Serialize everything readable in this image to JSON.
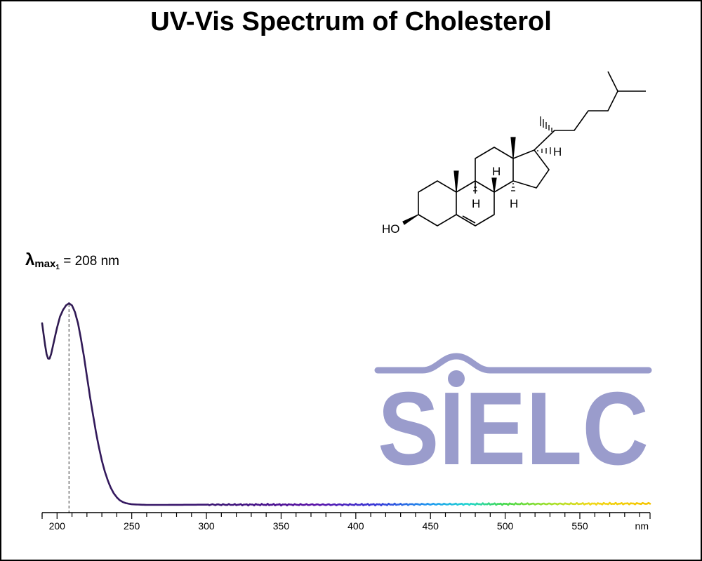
{
  "chart_data": {
    "type": "line",
    "title": "UV-Vis Spectrum of Cholesterol",
    "xlabel": "nm",
    "ylabel": "",
    "xlim": [
      190,
      597
    ],
    "ylim": [
      0,
      1.0
    ],
    "x_ticks_major": [
      200,
      250,
      300,
      350,
      400,
      450,
      500,
      550
    ],
    "x_ticks_minor_step": 10,
    "grid": false,
    "annotations": [
      {
        "kind": "lambda_max",
        "symbol": "λ",
        "sub": "max",
        "index": "1",
        "value_text": "= 208 nm",
        "x": 208
      }
    ],
    "series": [
      {
        "x": [
          190,
          192,
          193,
          194,
          195,
          196,
          198,
          200,
          202,
          204,
          206,
          208,
          210,
          212,
          214,
          216,
          218,
          220,
          222,
          224,
          226,
          228,
          230,
          232,
          234,
          236,
          238,
          240,
          242,
          244,
          246,
          248,
          250,
          253,
          256,
          260,
          270,
          300,
          350,
          400,
          450,
          500,
          550,
          597
        ],
        "values": [
          0.82,
          0.72,
          0.68,
          0.66,
          0.66,
          0.68,
          0.74,
          0.8,
          0.85,
          0.88,
          0.9,
          0.91,
          0.9,
          0.87,
          0.82,
          0.75,
          0.67,
          0.58,
          0.49,
          0.41,
          0.33,
          0.26,
          0.2,
          0.15,
          0.11,
          0.077,
          0.052,
          0.034,
          0.021,
          0.013,
          0.008,
          0.005,
          0.003,
          0.002,
          0.001,
          0.0,
          0.0,
          0.001,
          0.001,
          0.001,
          0.003,
          0.004,
          0.005,
          0.006
        ]
      }
    ],
    "gradient_colors": [
      "#2e1b4e",
      "#3d1577",
      "#5b12a8",
      "#3a3ad8",
      "#1f9bf0",
      "#22d6d0",
      "#44d84a",
      "#a8e02a",
      "#f0d81a",
      "#f5c400"
    ]
  },
  "logo": {
    "text": "SIELC",
    "color": "#9a9ccc"
  },
  "molecule": {
    "labels": [
      "HO",
      "H",
      "H",
      "H",
      "H"
    ]
  }
}
